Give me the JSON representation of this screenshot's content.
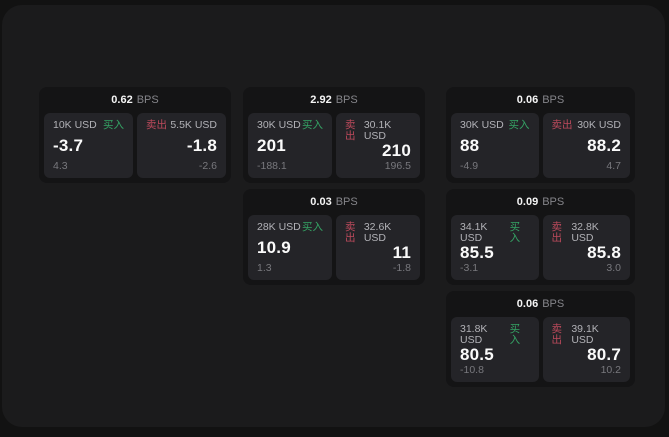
{
  "labels": {
    "bps_unit": "BPS",
    "buy": "买入",
    "sell": "卖出"
  },
  "colors": {
    "page_bg": "#121212",
    "container_bg": "#1b1b1c",
    "card_bg": "#141415",
    "panel_bg": "#242428",
    "buy_green": "#35a465",
    "sell_red": "#bd4a5c"
  },
  "cards": [
    {
      "bps": "0.62",
      "buy": {
        "amount": "10K USD",
        "main": "-3.7",
        "sub": "4.3"
      },
      "sell": {
        "amount": "5.5K USD",
        "main": "-1.8",
        "sub": "-2.6"
      }
    },
    {
      "bps": "2.92",
      "buy": {
        "amount": "30K USD",
        "main": "201",
        "sub": "-188.1"
      },
      "sell": {
        "amount": "30.1K USD",
        "main": "210",
        "sub": "196.5"
      }
    },
    {
      "bps": "0.06",
      "buy": {
        "amount": "30K USD",
        "main": "88",
        "sub": "-4.9"
      },
      "sell": {
        "amount": "30K USD",
        "main": "88.2",
        "sub": "4.7"
      }
    },
    {
      "bps": "0.03",
      "buy": {
        "amount": "28K USD",
        "main": "10.9",
        "sub": "1.3"
      },
      "sell": {
        "amount": "32.6K USD",
        "main": "11",
        "sub": "-1.8"
      }
    },
    {
      "bps": "0.09",
      "buy": {
        "amount": "34.1K USD",
        "main": "85.5",
        "sub": "-3.1"
      },
      "sell": {
        "amount": "32.8K USD",
        "main": "85.8",
        "sub": "3.0"
      }
    },
    {
      "bps": "0.06",
      "buy": {
        "amount": "31.8K USD",
        "main": "80.5",
        "sub": "-10.8"
      },
      "sell": {
        "amount": "39.1K USD",
        "main": "80.7",
        "sub": "10.2"
      }
    }
  ]
}
